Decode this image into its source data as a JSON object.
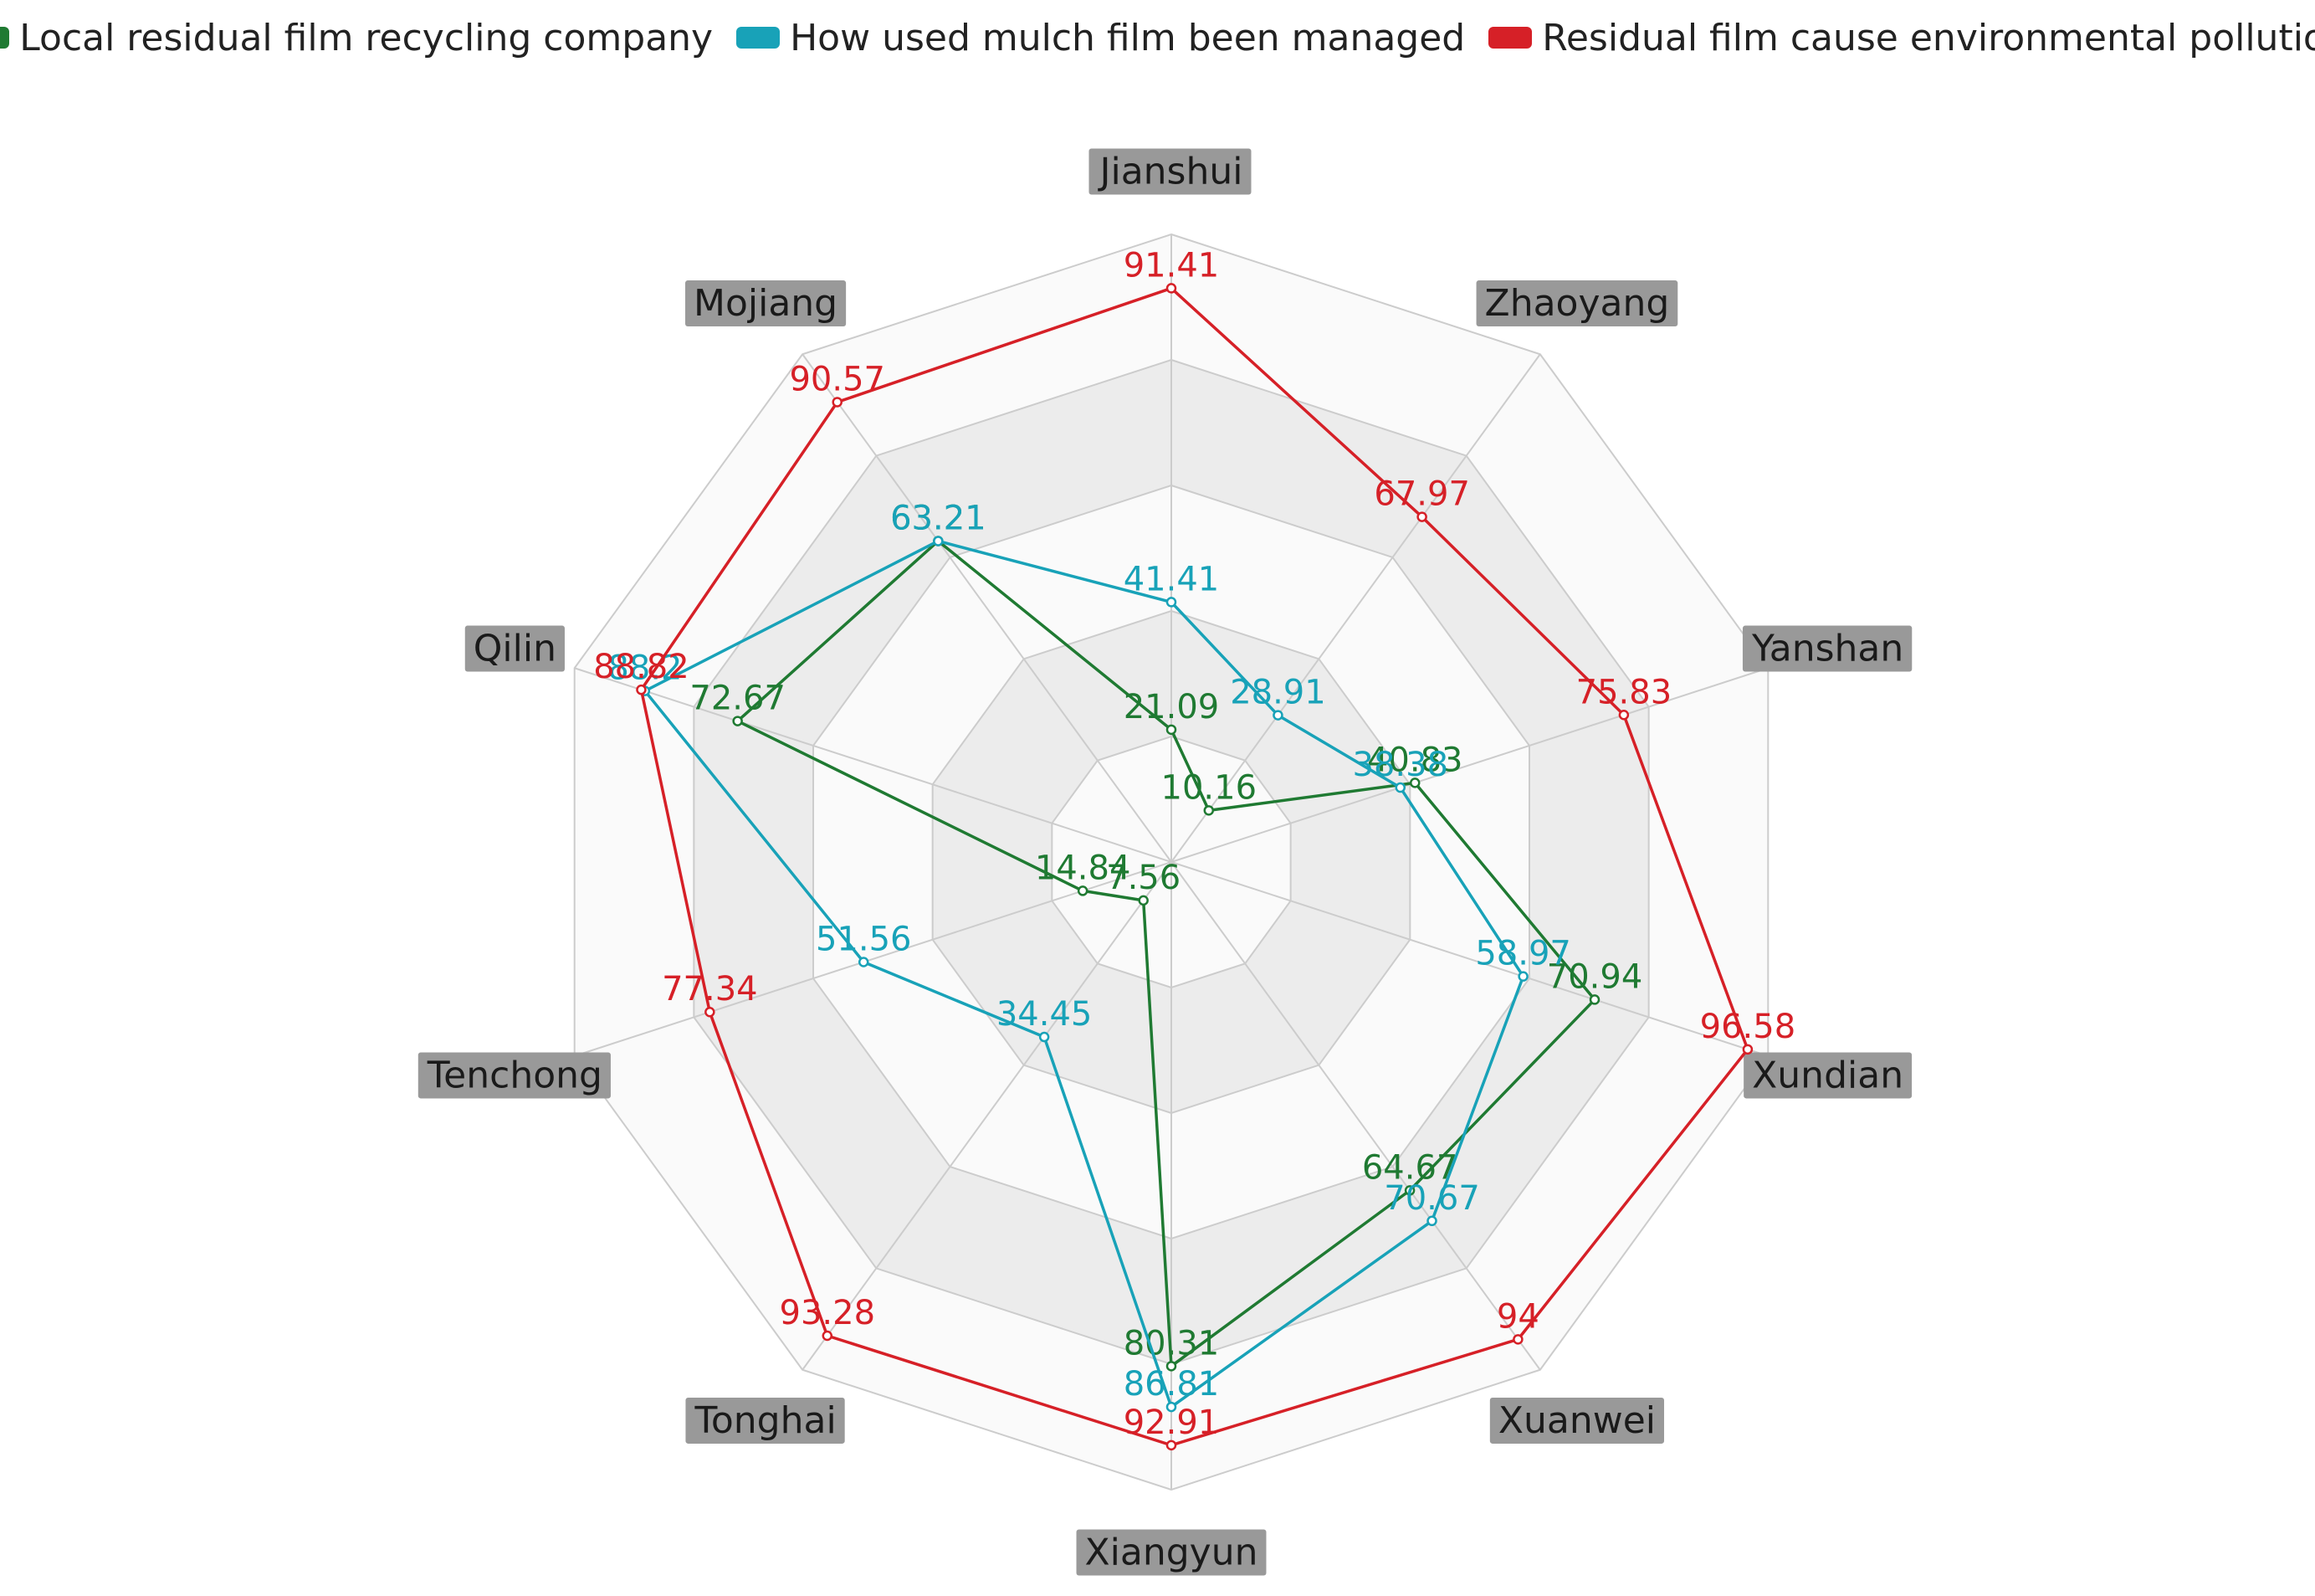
{
  "chart_data": {
    "type": "radar",
    "max": 100,
    "rings": 5,
    "categories": [
      "Jianshui",
      "Zhaoyang",
      "Yanshan",
      "Xundian",
      "Xuanwei",
      "Xiangyun",
      "Tonghai",
      "Tenchong",
      "Qilin",
      "Mojiang"
    ],
    "series": [
      {
        "name": "Local residual film recycling company",
        "color": "#1f7a32",
        "values": [
          21.09,
          10.16,
          40.83,
          70.94,
          64.67,
          80.31,
          7.56,
          14.84,
          72.67,
          63.21
        ]
      },
      {
        "name": "How used mulch film been managed",
        "color": "#18a2b8",
        "values": [
          41.41,
          28.91,
          38.38,
          58.97,
          70.67,
          86.81,
          34.45,
          51.56,
          88.2,
          63.21
        ]
      },
      {
        "name": "Residual film cause environmental pollution",
        "color": "#d62027",
        "values": [
          91.41,
          67.97,
          75.83,
          96.58,
          94,
          92.91,
          93.28,
          77.34,
          88.82,
          90.57
        ]
      }
    ]
  }
}
